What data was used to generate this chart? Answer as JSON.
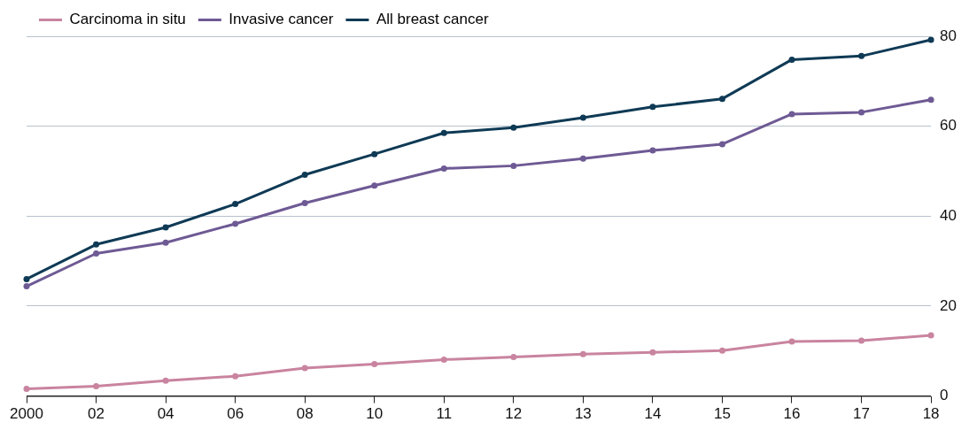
{
  "chart_data": {
    "type": "line",
    "categories": [
      "2000",
      "02",
      "04",
      "06",
      "08",
      "10",
      "11",
      "12",
      "13",
      "14",
      "15",
      "16",
      "17",
      "18"
    ],
    "series": [
      {
        "name": "Carcinoma in situ",
        "color": "#c9849f",
        "values": [
          1.6,
          2.2,
          3.4,
          4.4,
          6.2,
          7.1,
          8.1,
          8.7,
          9.3,
          9.7,
          10.1,
          12.1,
          12.3,
          13.5
        ]
      },
      {
        "name": "Invasive cancer",
        "color": "#6e5a94",
        "values": [
          24.4,
          31.7,
          34.1,
          38.3,
          42.9,
          46.8,
          50.6,
          51.2,
          52.8,
          54.6,
          56.0,
          62.7,
          63.1,
          65.9
        ]
      },
      {
        "name": "All breast cancer",
        "color": "#0f3a55",
        "values": [
          26.0,
          33.7,
          37.5,
          42.7,
          49.2,
          53.8,
          58.5,
          59.7,
          61.9,
          64.3,
          66.1,
          74.8,
          75.6,
          79.2
        ]
      }
    ],
    "ylim": [
      0,
      80
    ],
    "yticks": [
      0,
      20,
      40,
      60,
      80
    ],
    "grid": "y",
    "legend": "top left",
    "marker": "circle",
    "line_style": "solid"
  }
}
